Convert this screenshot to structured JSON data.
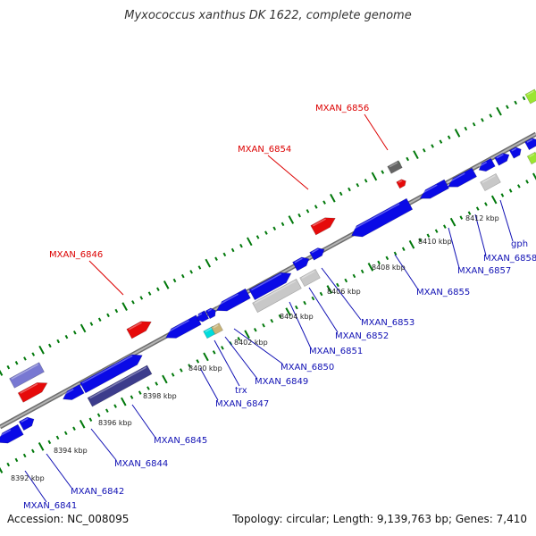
{
  "title": "Myxococcus xanthus DK 1622, complete genome",
  "accession": "Accession: NC_008095",
  "summary": "Topology: circular; Length: 9,139,763 bp; Genes: 7,410",
  "ticks": [
    "8392 kbp",
    "8394 kbp",
    "8396 kbp",
    "8398 kbp",
    "8400 kbp",
    "8402 kbp",
    "8404 kbp",
    "8406 kbp",
    "8408 kbp",
    "8410 kbp",
    "8412 kbp"
  ],
  "blue_labels": [
    "MXAN_6841",
    "MXAN_6842",
    "MXAN_6844",
    "MXAN_6845",
    "MXAN_6847",
    "trx",
    "MXAN_6849",
    "MXAN_6850",
    "MXAN_6851",
    "MXAN_6852",
    "MXAN_6853",
    "MXAN_6855",
    "MXAN_6857",
    "MXAN_6858",
    "gph"
  ],
  "red_labels": [
    "MXAN_6846",
    "MXAN_6854",
    "MXAN_6856"
  ],
  "colors": {
    "cds": "#0a0ae6",
    "rna": "#e60a0a",
    "pseudo": "#c8c8c8",
    "dark": "#3c3c8c",
    "light": "#7878d2",
    "green": "#9be632",
    "cyan": "#00dcdc",
    "khaki": "#c8b478",
    "backbone": "#8c8c8c",
    "tick": "#00780a"
  }
}
